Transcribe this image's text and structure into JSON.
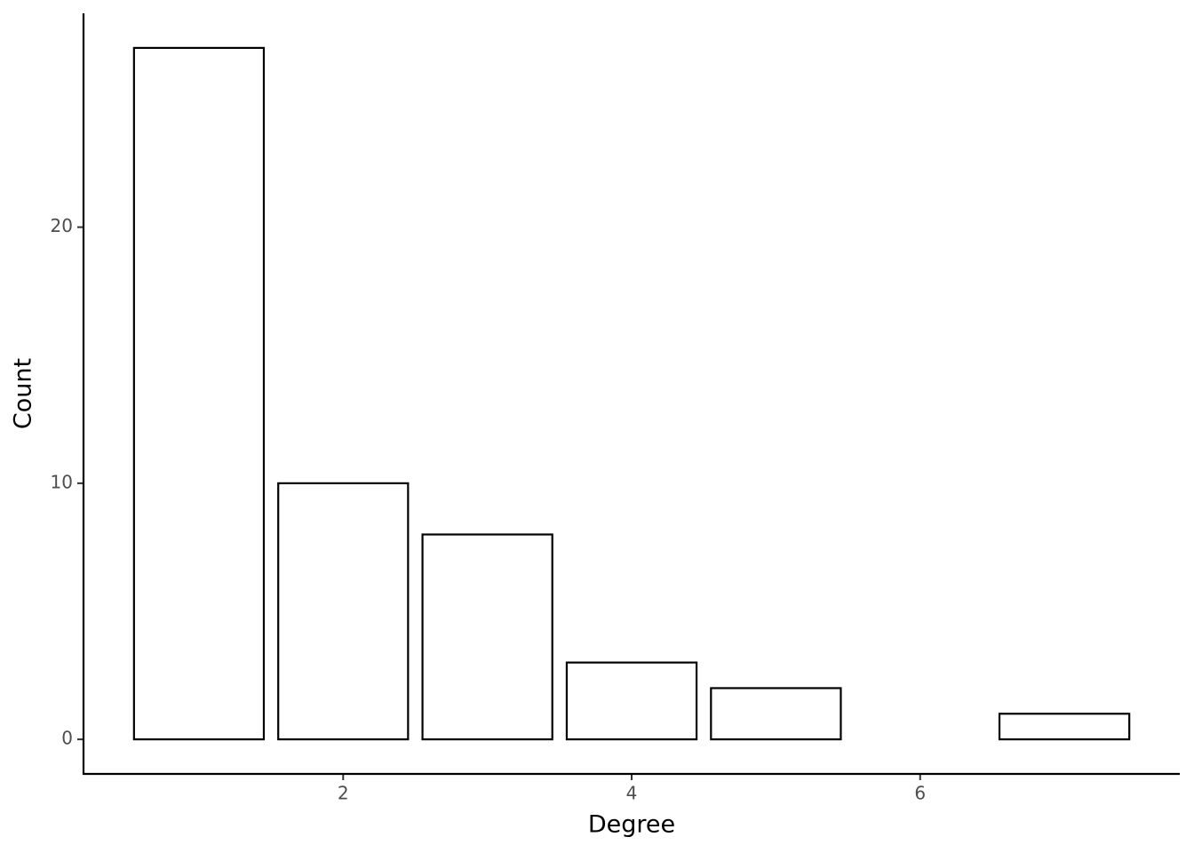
{
  "chart_data": {
    "type": "bar",
    "x_label": "Degree",
    "y_label": "Count",
    "x": [
      1,
      2,
      3,
      4,
      5,
      7
    ],
    "values": [
      27,
      10,
      8,
      3,
      2,
      1
    ],
    "fill": "#ffffff",
    "color": "#000000",
    "xlim": [
      0.2,
      7.8
    ],
    "xticks": [
      2,
      4,
      6
    ],
    "ylim": [
      -1.35,
      28.35
    ],
    "yticks": [
      0,
      10,
      20
    ],
    "grid": false
  }
}
